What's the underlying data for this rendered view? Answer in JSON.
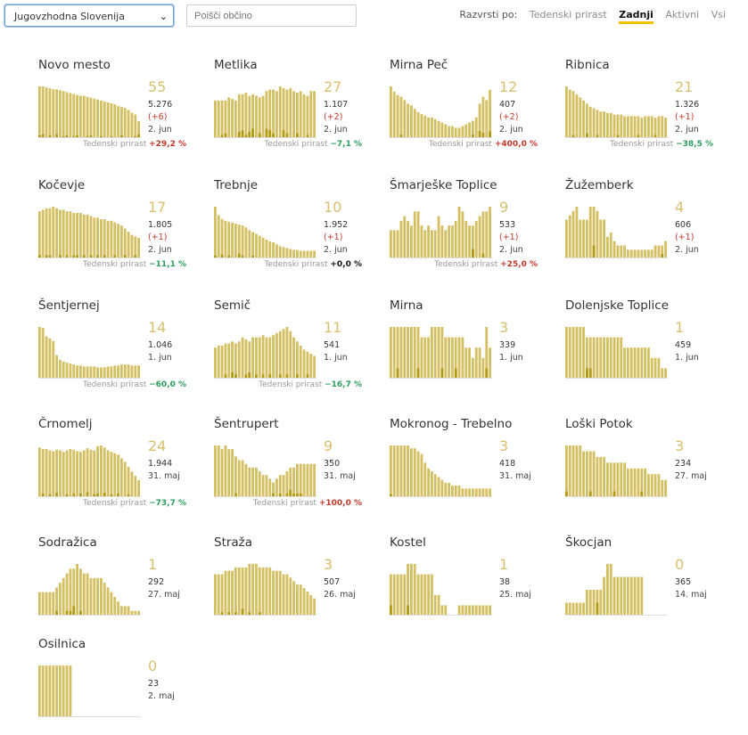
{
  "controls": {
    "region": "Jugovzhodna Slovenija",
    "search_placeholder": "Poišči občino",
    "sort_label": "Razvrsti po:",
    "sort_options": [
      "Tedenski prirast",
      "Zadnji",
      "Aktivni",
      "Vsi"
    ],
    "sort_active": "Zadnji"
  },
  "colors": {
    "bar": "#d4c063",
    "bar_dark": "#b39a10",
    "pos": "#c0392b",
    "neg": "#2e9e5e",
    "count": "#d9c070"
  },
  "growth_label": "Tedenski prirast",
  "chart_data": [
    {
      "type": "bar",
      "title": "Novo mesto",
      "count": "55",
      "total": "5.276",
      "delta": "(+6)",
      "date": "2. jun",
      "growth": "+29,2 %",
      "sign": "pos",
      "values": [
        55,
        55,
        54,
        53,
        52,
        52,
        51,
        50,
        49,
        48,
        47,
        46,
        45,
        45,
        44,
        43,
        42,
        41,
        40,
        39,
        38,
        37,
        36,
        34,
        33,
        32,
        30,
        27,
        25,
        18
      ],
      "new": [
        3,
        4,
        0,
        3,
        0,
        4,
        0,
        2,
        3,
        0,
        2,
        3,
        0,
        0,
        2,
        3,
        0,
        0,
        2,
        0,
        0,
        2,
        0,
        0,
        3,
        0,
        0,
        0,
        2,
        4
      ]
    },
    {
      "type": "bar",
      "title": "Metlika",
      "count": "27",
      "total": "1.107",
      "delta": "(+2)",
      "date": "2. jun",
      "growth": "−7,1 %",
      "sign": "neg",
      "values": [
        24,
        24,
        24,
        24,
        26,
        25,
        24,
        28,
        28,
        29,
        27,
        28,
        27,
        26,
        27,
        30,
        31,
        31,
        30,
        33,
        32,
        31,
        32,
        30,
        29,
        30,
        28,
        27,
        30,
        30
      ],
      "new": [
        0,
        0,
        2,
        3,
        0,
        0,
        0,
        4,
        5,
        2,
        4,
        6,
        0,
        3,
        0,
        6,
        5,
        3,
        0,
        0,
        5,
        3,
        0,
        0,
        3,
        0,
        0,
        2,
        0,
        0
      ]
    },
    {
      "type": "bar",
      "title": "Mirna Peč",
      "count": "12",
      "total": "407",
      "delta": "(+2)",
      "date": "2. jun",
      "growth": "+400,0 %",
      "sign": "pos",
      "values": [
        30,
        27,
        25,
        24,
        22,
        20,
        19,
        17,
        15,
        14,
        13,
        12,
        12,
        11,
        10,
        9,
        8,
        7,
        7,
        6,
        6,
        7,
        8,
        9,
        10,
        12,
        20,
        24,
        22,
        28
      ],
      "new": [
        0,
        0,
        0,
        2,
        0,
        0,
        0,
        0,
        0,
        0,
        0,
        0,
        0,
        0,
        0,
        0,
        0,
        0,
        0,
        0,
        0,
        0,
        0,
        0,
        2,
        0,
        4,
        3,
        0,
        4
      ]
    },
    {
      "type": "bar",
      "title": "Ribnica",
      "count": "21",
      "total": "1.326",
      "delta": "(+1)",
      "date": "2. jun",
      "growth": "−38,5 %",
      "sign": "neg",
      "values": [
        33,
        31,
        30,
        28,
        26,
        24,
        22,
        20,
        19,
        18,
        17,
        17,
        16,
        16,
        15,
        15,
        15,
        14,
        14,
        14,
        14,
        14,
        13,
        14,
        14,
        14,
        13,
        14,
        14,
        13
      ],
      "new": [
        0,
        0,
        2,
        0,
        0,
        0,
        3,
        0,
        0,
        2,
        0,
        0,
        0,
        0,
        0,
        2,
        0,
        0,
        0,
        0,
        0,
        2,
        0,
        0,
        0,
        0,
        2,
        0,
        0,
        0
      ]
    },
    {
      "type": "bar",
      "title": "Kočevje",
      "count": "17",
      "total": "1.805",
      "delta": "(+1)",
      "date": "2. jun",
      "growth": "−11,1 %",
      "sign": "neg",
      "values": [
        30,
        31,
        32,
        32,
        33,
        32,
        31,
        31,
        30,
        30,
        29,
        29,
        29,
        28,
        28,
        27,
        26,
        26,
        25,
        25,
        24,
        24,
        23,
        22,
        21,
        19,
        17,
        15,
        14,
        13
      ],
      "new": [
        2,
        0,
        2,
        2,
        0,
        0,
        2,
        0,
        2,
        0,
        2,
        2,
        0,
        2,
        0,
        2,
        0,
        2,
        0,
        2,
        0,
        0,
        2,
        0,
        0,
        2,
        0,
        0,
        2,
        0
      ]
    },
    {
      "type": "bar",
      "title": "Trebnje",
      "count": "10",
      "total": "1.952",
      "delta": "(+1)",
      "date": "2. jun",
      "growth": "+0,0 %",
      "sign": "zero",
      "values": [
        55,
        46,
        42,
        40,
        39,
        38,
        37,
        36,
        35,
        33,
        30,
        28,
        26,
        24,
        22,
        20,
        18,
        17,
        15,
        13,
        12,
        11,
        10,
        9,
        9,
        8,
        8,
        8,
        8,
        8
      ],
      "new": [
        3,
        0,
        4,
        0,
        3,
        0,
        0,
        5,
        3,
        0,
        0,
        3,
        0,
        0,
        0,
        0,
        0,
        0,
        0,
        0,
        0,
        0,
        0,
        0,
        0,
        0,
        0,
        0,
        0,
        0
      ]
    },
    {
      "type": "bar",
      "title": "Šmarješke Toplice",
      "count": "9",
      "total": "533",
      "delta": "(+1)",
      "date": "2. jun",
      "growth": "+25,0 %",
      "sign": "pos",
      "values": [
        6,
        6,
        6,
        8,
        9,
        8,
        7,
        10,
        10,
        7,
        6,
        7,
        6,
        6,
        9,
        7,
        6,
        7,
        7,
        8,
        11,
        10,
        8,
        7,
        7,
        8,
        9,
        10,
        10,
        11
      ],
      "new": [
        0,
        0,
        0,
        0,
        0,
        0,
        0,
        0,
        0,
        0,
        0,
        0,
        0,
        0,
        0,
        0,
        0,
        0,
        0,
        0,
        0,
        0,
        0,
        0,
        2,
        0,
        0,
        1,
        0,
        0
      ]
    },
    {
      "type": "bar",
      "title": "Žužemberk",
      "count": "4",
      "total": "606",
      "delta": "(+1)",
      "date": "2. jun",
      "growth": "",
      "sign": "zero",
      "values": [
        9,
        10,
        11,
        12,
        9,
        9,
        9,
        12,
        12,
        11,
        9,
        9,
        5,
        6,
        4,
        3,
        3,
        3,
        2,
        2,
        2,
        2,
        2,
        2,
        2,
        2,
        3,
        3,
        3,
        4
      ],
      "new": [
        0,
        0,
        0,
        0,
        0,
        0,
        0,
        0,
        3,
        0,
        0,
        0,
        0,
        0,
        0,
        0,
        0,
        0,
        0,
        0,
        0,
        0,
        0,
        0,
        0,
        0,
        0,
        0,
        1,
        0
      ]
    },
    {
      "type": "bar",
      "title": "Šentjernej",
      "count": "14",
      "total": "1.046",
      "delta": "",
      "date": "1. jun",
      "growth": "−60,0 %",
      "sign": "neg",
      "values": [
        55,
        54,
        45,
        43,
        40,
        25,
        20,
        18,
        17,
        16,
        15,
        14,
        14,
        13,
        13,
        13,
        13,
        12,
        12,
        12,
        13,
        13,
        14,
        14,
        15,
        15,
        15,
        14,
        14,
        14
      ],
      "new": [
        0,
        0,
        0,
        0,
        0,
        0,
        0,
        0,
        0,
        0,
        0,
        0,
        0,
        0,
        0,
        0,
        0,
        0,
        0,
        0,
        0,
        0,
        0,
        0,
        0,
        0,
        0,
        0,
        0,
        0
      ]
    },
    {
      "type": "bar",
      "title": "Semič",
      "count": "11",
      "total": "541",
      "delta": "",
      "date": "1. jun",
      "growth": "−16,7 %",
      "sign": "neg",
      "values": [
        15,
        16,
        16,
        17,
        17,
        18,
        17,
        18,
        20,
        19,
        18,
        20,
        20,
        20,
        21,
        20,
        20,
        21,
        22,
        23,
        24,
        25,
        23,
        20,
        18,
        16,
        14,
        13,
        12,
        11
      ],
      "new": [
        0,
        0,
        0,
        2,
        0,
        3,
        2,
        0,
        0,
        2,
        3,
        0,
        2,
        0,
        2,
        0,
        2,
        0,
        0,
        2,
        0,
        2,
        0,
        0,
        2,
        0,
        0,
        2,
        0,
        0
      ]
    },
    {
      "type": "bar",
      "title": "Mirna",
      "count": "3",
      "total": "339",
      "delta": "",
      "date": "1. jun",
      "growth": "",
      "sign": "zero",
      "values": [
        5,
        5,
        5,
        5,
        5,
        5,
        5,
        5,
        5,
        4,
        4,
        4,
        5,
        5,
        5,
        5,
        4,
        4,
        4,
        4,
        4,
        4,
        3,
        3,
        2,
        3,
        3,
        2,
        5,
        3
      ],
      "new": [
        0,
        0,
        1,
        0,
        0,
        0,
        0,
        0,
        1,
        0,
        0,
        0,
        0,
        0,
        0,
        1,
        0,
        0,
        0,
        1,
        0,
        0,
        0,
        0,
        0,
        0,
        0,
        0,
        1,
        0
      ]
    },
    {
      "type": "bar",
      "title": "Dolenjske Toplice",
      "count": "1",
      "total": "459",
      "delta": "",
      "date": "1. jun",
      "growth": "",
      "sign": "zero",
      "values": [
        5,
        5,
        5,
        5,
        5,
        5,
        4,
        4,
        4,
        4,
        4,
        4,
        4,
        4,
        4,
        4,
        4,
        3,
        3,
        3,
        3,
        3,
        3,
        3,
        3,
        2,
        2,
        2,
        1,
        1
      ],
      "new": [
        0,
        0,
        0,
        0,
        0,
        0,
        1,
        1,
        0,
        0,
        0,
        0,
        0,
        0,
        0,
        0,
        0,
        0,
        0,
        0,
        0,
        0,
        0,
        0,
        0,
        0,
        0,
        0,
        0,
        0
      ]
    },
    {
      "type": "bar",
      "title": "Črnomelj",
      "count": "24",
      "total": "1.944",
      "delta": "",
      "date": "31. maj",
      "growth": "−73,7 %",
      "sign": "neg",
      "values": [
        70,
        68,
        68,
        66,
        65,
        67,
        66,
        64,
        66,
        68,
        67,
        65,
        64,
        66,
        69,
        67,
        66,
        72,
        73,
        70,
        66,
        64,
        62,
        60,
        55,
        50,
        43,
        36,
        30,
        24
      ],
      "new": [
        0,
        5,
        0,
        4,
        0,
        6,
        0,
        0,
        4,
        0,
        5,
        0,
        5,
        0,
        7,
        0,
        4,
        5,
        0,
        6,
        0,
        4,
        0,
        5,
        0,
        0,
        4,
        0,
        0,
        0
      ]
    },
    {
      "type": "bar",
      "title": "Šentrupert",
      "count": "9",
      "total": "350",
      "delta": "",
      "date": "31. maj",
      "growth": "+100,0 %",
      "sign": "pos",
      "values": [
        14,
        14,
        13,
        14,
        13,
        13,
        11,
        10,
        10,
        9,
        8,
        8,
        8,
        7,
        6,
        6,
        5,
        4,
        5,
        6,
        6,
        7,
        8,
        8,
        9,
        9,
        9,
        9,
        9,
        9
      ],
      "new": [
        0,
        0,
        0,
        0,
        0,
        0,
        1,
        0,
        0,
        0,
        0,
        0,
        0,
        0,
        0,
        0,
        0,
        1,
        0,
        1,
        0,
        1,
        2,
        1,
        1,
        1,
        0,
        0,
        0,
        0
      ]
    },
    {
      "type": "bar",
      "title": "Mokronog - Trebelno",
      "count": "3",
      "total": "418",
      "delta": "",
      "date": "31. maj",
      "growth": "",
      "sign": "zero",
      "values": [
        18,
        18,
        18,
        18,
        18,
        18,
        17,
        17,
        16,
        15,
        12,
        10,
        9,
        8,
        7,
        6,
        5,
        5,
        4,
        4,
        4,
        3,
        3,
        3,
        3,
        3,
        3,
        3,
        3,
        3
      ],
      "new": [
        1,
        0,
        0,
        0,
        0,
        0,
        0,
        0,
        0,
        0,
        0,
        0,
        0,
        0,
        0,
        0,
        0,
        0,
        0,
        0,
        0,
        0,
        0,
        0,
        0,
        0,
        0,
        0,
        0,
        0
      ]
    },
    {
      "type": "bar",
      "title": "Loški Potok",
      "count": "3",
      "total": "234",
      "delta": "",
      "date": "27. maj",
      "growth": "",
      "sign": "zero",
      "values": [
        9,
        9,
        9,
        9,
        9,
        8,
        8,
        8,
        8,
        7,
        7,
        7,
        6,
        6,
        6,
        6,
        6,
        6,
        5,
        5,
        5,
        5,
        5,
        5,
        4,
        4,
        4,
        4,
        3,
        3
      ],
      "new": [
        1,
        0,
        0,
        0,
        0,
        0,
        0,
        1,
        0,
        0,
        0,
        0,
        0,
        0,
        1,
        0,
        0,
        0,
        0,
        0,
        0,
        0,
        1,
        0,
        0,
        0,
        0,
        0,
        0,
        0
      ]
    },
    {
      "type": "bar",
      "title": "Sodražica",
      "count": "1",
      "total": "292",
      "delta": "",
      "date": "27. maj",
      "growth": "",
      "sign": "zero",
      "values": [
        5,
        5,
        5,
        5,
        5,
        6,
        7,
        8,
        9,
        10,
        10,
        11,
        10,
        9,
        9,
        8,
        8,
        8,
        8,
        7,
        6,
        5,
        4,
        3,
        2,
        2,
        2,
        1,
        1,
        1
      ],
      "new": [
        0,
        0,
        0,
        0,
        0,
        1,
        0,
        0,
        1,
        1,
        2,
        0,
        1,
        0,
        0,
        0,
        0,
        0,
        0,
        0,
        0,
        0,
        0,
        0,
        0,
        0,
        0,
        0,
        0,
        0
      ]
    },
    {
      "type": "bar",
      "title": "Straža",
      "count": "3",
      "total": "507",
      "delta": "",
      "date": "26. maj",
      "growth": "",
      "sign": "zero",
      "values": [
        12,
        12,
        12,
        13,
        13,
        13,
        14,
        14,
        14,
        14,
        15,
        15,
        15,
        14,
        14,
        14,
        14,
        13,
        13,
        13,
        12,
        12,
        11,
        10,
        9,
        9,
        8,
        7,
        6,
        5
      ],
      "new": [
        0,
        0,
        1,
        0,
        1,
        0,
        1,
        0,
        2,
        0,
        1,
        0,
        0,
        1,
        0,
        0,
        0,
        0,
        0,
        0,
        0,
        0,
        0,
        0,
        0,
        0,
        0,
        0,
        0,
        0
      ]
    },
    {
      "type": "bar",
      "title": "Kostel",
      "count": "1",
      "total": "38",
      "delta": "",
      "date": "25. maj",
      "growth": "",
      "sign": "zero",
      "values": [
        4,
        4,
        4,
        4,
        4,
        5,
        5,
        5,
        4,
        4,
        4,
        4,
        4,
        2,
        2,
        1,
        1,
        0,
        0,
        0,
        1,
        1,
        1,
        1,
        1,
        1,
        1,
        1,
        1,
        1
      ],
      "new": [
        1,
        0,
        0,
        0,
        0,
        1,
        0,
        0,
        0,
        0,
        0,
        0,
        0,
        0,
        0,
        0,
        0,
        0,
        0,
        0,
        0,
        0,
        0,
        0,
        0,
        0,
        0,
        0,
        0,
        0
      ]
    },
    {
      "type": "bar",
      "title": "Škocjan",
      "count": "0",
      "total": "365",
      "delta": "",
      "date": "14. maj",
      "growth": "",
      "sign": "zero",
      "values": [
        1,
        1,
        1,
        1,
        1,
        1,
        2,
        2,
        2,
        2,
        2,
        3,
        4,
        4,
        3,
        3,
        3,
        3,
        3,
        3,
        3,
        3,
        3,
        0,
        0,
        0,
        0,
        0,
        0,
        0
      ],
      "new": [
        0,
        0,
        0,
        0,
        0,
        0,
        0,
        0,
        0,
        1,
        0,
        0,
        0,
        0,
        0,
        0,
        0,
        0,
        0,
        0,
        0,
        0,
        0,
        0,
        0,
        0,
        0,
        0,
        0,
        0
      ]
    },
    {
      "type": "bar",
      "title": "Osilnica",
      "count": "0",
      "total": "23",
      "delta": "",
      "date": "2. maj",
      "growth": "",
      "sign": "zero",
      "values": [
        1,
        1,
        1,
        1,
        1,
        1,
        1,
        1,
        1,
        1,
        0,
        0,
        0,
        0,
        0,
        0,
        0,
        0,
        0,
        0,
        0,
        0,
        0,
        0,
        0,
        0,
        0,
        0,
        0,
        0
      ],
      "new": [
        0,
        0,
        0,
        0,
        0,
        0,
        0,
        0,
        0,
        0,
        0,
        0,
        0,
        0,
        0,
        0,
        0,
        0,
        0,
        0,
        0,
        0,
        0,
        0,
        0,
        0,
        0,
        0,
        0,
        0
      ]
    }
  ]
}
